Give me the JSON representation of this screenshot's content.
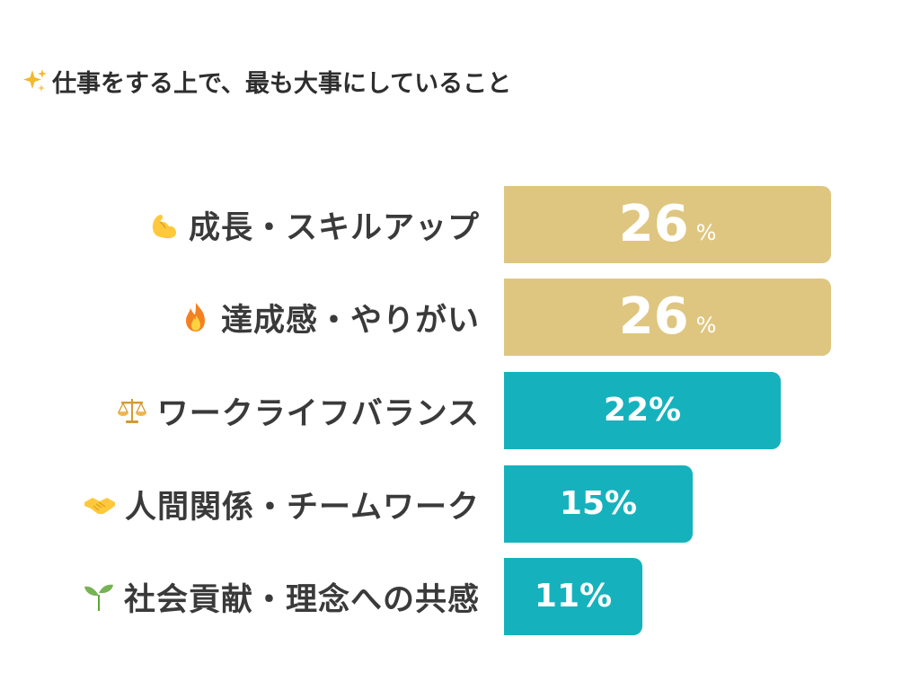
{
  "title": "仕事をする上で、最も大事にしていること",
  "title_icon": "sparkles-icon",
  "colors": {
    "highlight": "#dfc680",
    "normal": "#15b2bd",
    "label_text": "#3a3a3a",
    "value_text": "#ffffff"
  },
  "chart_data": {
    "type": "bar",
    "orientation": "horizontal",
    "title": "仕事をする上で、最も大事にしていること",
    "unit": "%",
    "categories": [
      "成長・スキルアップ",
      "達成感・やりがい",
      "ワークライフバランス",
      "人間関係・チームワーク",
      "社会貢献・理念への共感"
    ],
    "category_icons": [
      "flexed-biceps-icon",
      "fire-icon",
      "balance-scale-icon",
      "handshake-icon",
      "seedling-icon"
    ],
    "values": [
      26,
      26,
      22,
      15,
      11
    ],
    "value_labels": [
      "26",
      "26",
      "22%",
      "15%",
      "11%"
    ],
    "highlighted": [
      true,
      true,
      false,
      false,
      false
    ],
    "xlim": [
      0,
      30
    ],
    "grid": false,
    "legend": "none"
  }
}
